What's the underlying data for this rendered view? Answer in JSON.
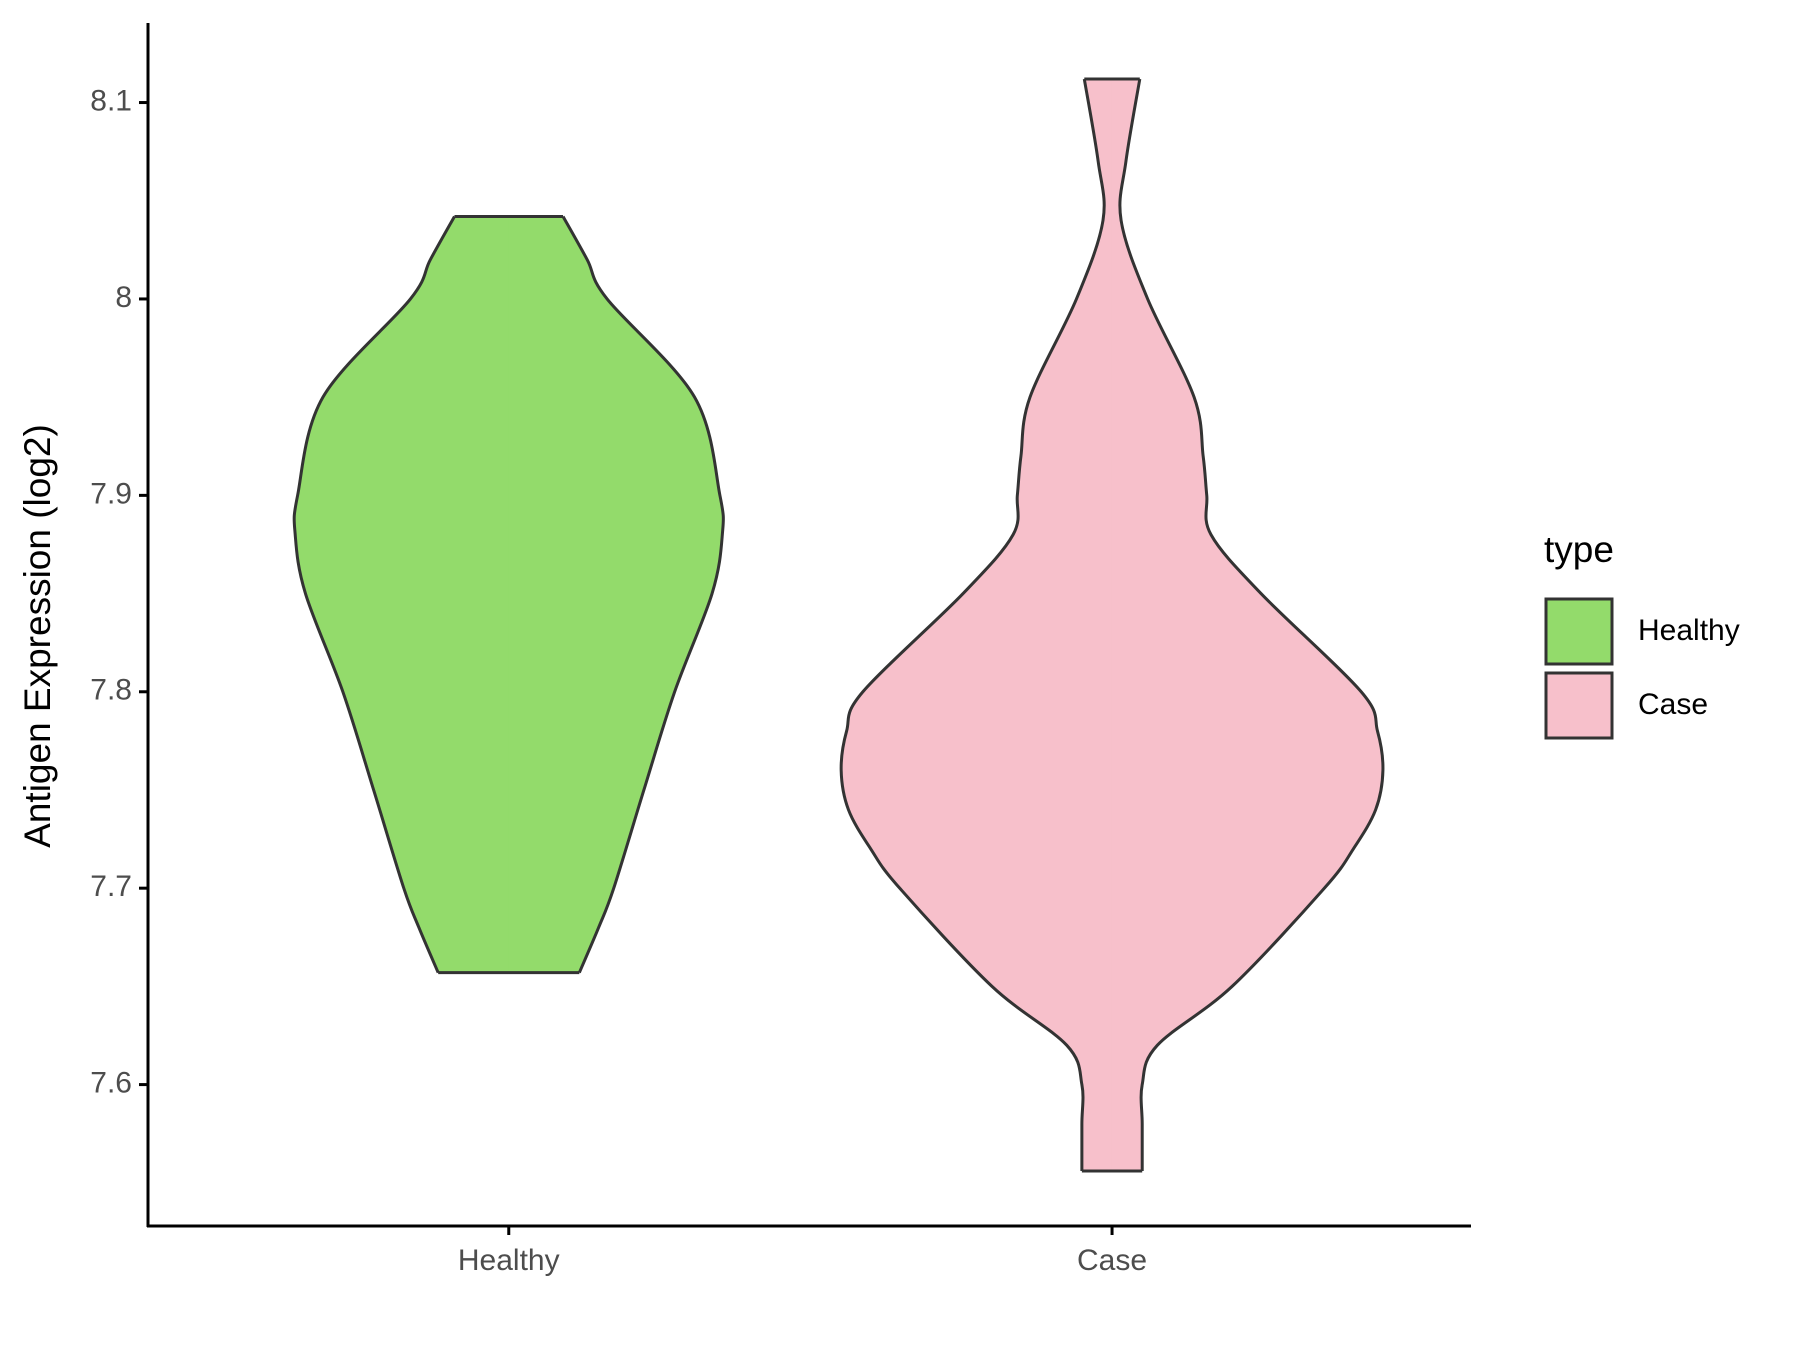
{
  "chart_data": {
    "type": "violin",
    "y_label": "Antigen Expression (log2)",
    "legend_title": "type",
    "categories": [
      "Healthy",
      "Case"
    ],
    "ylim": [
      7.528,
      8.1405
    ],
    "yticks": [
      7.6,
      7.7,
      7.8,
      7.9,
      8.0,
      8.1
    ],
    "series": [
      {
        "name": "Healthy",
        "color": "#93DB6B",
        "y": [
          7.657,
          7.68,
          7.7,
          7.75,
          7.8,
          7.85,
          7.88,
          7.9,
          7.95,
          8.0,
          8.02,
          8.042
        ],
        "half_width": [
          0.117,
          0.149,
          0.174,
          0.224,
          0.275,
          0.337,
          0.354,
          0.35,
          0.308,
          0.163,
          0.13,
          0.09
        ]
      },
      {
        "name": "Case",
        "color": "#F7C0CB",
        "y": [
          7.556,
          7.58,
          7.6,
          7.62,
          7.65,
          7.7,
          7.72,
          7.74,
          7.76,
          7.78,
          7.8,
          7.85,
          7.88,
          7.9,
          7.92,
          7.95,
          8.0,
          8.04,
          8.07,
          8.112
        ],
        "half_width": [
          0.05,
          0.05,
          0.05,
          0.075,
          0.199,
          0.352,
          0.4,
          0.437,
          0.449,
          0.44,
          0.413,
          0.247,
          0.164,
          0.157,
          0.151,
          0.136,
          0.059,
          0.015,
          0.023,
          0.046
        ]
      }
    ]
  }
}
